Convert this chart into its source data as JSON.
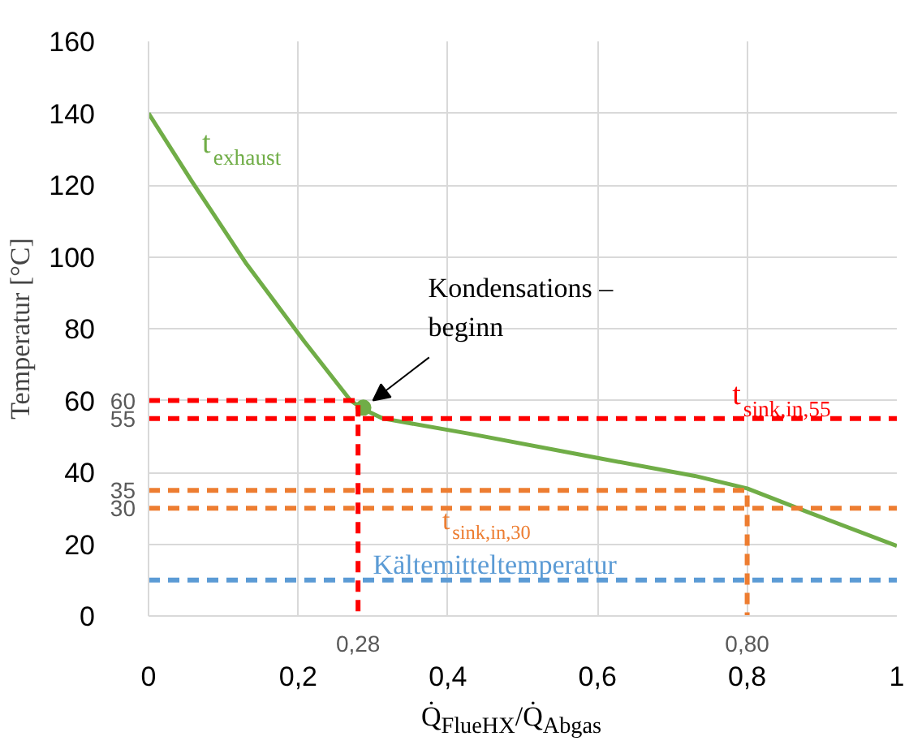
{
  "chart_data": {
    "type": "line",
    "xlabel": "Q̇$_{FlueHX}$/Q̇$_{Abgas}$",
    "ylabel": "Temperatur [°C]",
    "xlim": [
      0,
      1
    ],
    "ylim": [
      0,
      160
    ],
    "xticks": [
      0,
      {
        "value": 0.2,
        "label": "0,2"
      },
      {
        "value": 0.4,
        "label": "0,4"
      },
      {
        "value": 0.6,
        "label": "0,6"
      },
      {
        "value": 0.8,
        "label": "0,8"
      },
      1
    ],
    "yticks": [
      0,
      20,
      40,
      60,
      80,
      100,
      120,
      140,
      160
    ],
    "grid": true,
    "series": [
      {
        "color": "#70ad47",
        "x": [
          0,
          0.058,
          0.131,
          0.208,
          0.27,
          0.287,
          0.313,
          0.43,
          0.6,
          0.73,
          0.8,
          0.88,
          1
        ],
        "values": [
          140,
          121,
          98,
          76.5,
          60,
          57.6,
          55,
          50.7,
          44,
          39,
          35.5,
          29,
          19.5
        ]
      },
      {
        "type": "scatter",
        "marker": "circle",
        "color": "#70ad47",
        "x": [
          0.287
        ],
        "values": [
          58
        ]
      },
      {
        "color": "#ff0000",
        "line_style": "dashed",
        "x": [
          0,
          0.28,
          0.28
        ],
        "values": [
          60,
          60,
          0
        ]
      },
      {
        "color": "#ff0000",
        "line_style": "dashed",
        "x": [
          0,
          1
        ],
        "values": [
          55,
          55
        ]
      },
      {
        "color": "#ed7d31",
        "line_style": "dashed",
        "x": [
          0,
          0.8,
          0.8
        ],
        "values": [
          35,
          35,
          0
        ]
      },
      {
        "color": "#ed7d31",
        "line_style": "dashed",
        "x": [
          0,
          1
        ],
        "values": [
          30,
          30
        ]
      },
      {
        "color": "#5b9bd5",
        "line_style": "dashed",
        "x": [
          0,
          1
        ],
        "values": [
          10,
          10
        ]
      }
    ],
    "annotations": [
      {
        "text": "t$_{exhaust}$",
        "x": 0.05,
        "y": 125
      },
      {
        "text": "Kondensations –\nbeginn",
        "x": 0.3,
        "y": 60
      },
      {
        "text": "t$_{sink,in,55}$",
        "x": 0.78,
        "y": 55
      },
      {
        "text": "t$_{sink,in,30}$",
        "x": 0.41,
        "y": 30
      },
      {
        "text": "Kältemitteltemperatur",
        "x": 0.3,
        "y": 10
      },
      {
        "text": "60",
        "x": 0,
        "y": 60
      },
      {
        "text": "55",
        "x": 0,
        "y": 55
      },
      {
        "text": "35",
        "x": 0,
        "y": 35
      },
      {
        "text": "30",
        "x": 0,
        "y": 30
      },
      {
        "text": "0,28",
        "x": 0.28,
        "y": 0
      },
      {
        "text": "0,80",
        "x": 0.8,
        "y": 0
      }
    ]
  }
}
